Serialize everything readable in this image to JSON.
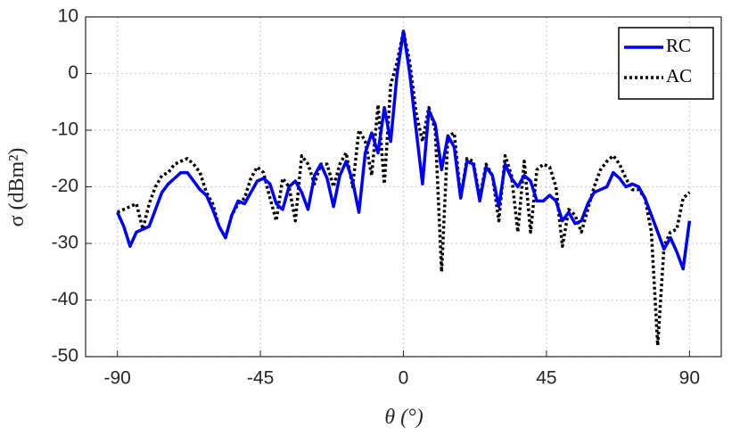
{
  "chart_data": {
    "type": "line",
    "xlabel": "θ (°)",
    "ylabel": "σ (dBm²)",
    "x": [
      -90,
      -88,
      -86,
      -84,
      -82,
      -80,
      -78,
      -76,
      -74,
      -72,
      -70,
      -68,
      -66,
      -64,
      -62,
      -60,
      -58,
      -56,
      -54,
      -52,
      -50,
      -48,
      -46,
      -44,
      -42,
      -40,
      -38,
      -36,
      -34,
      -32,
      -30,
      -28,
      -26,
      -24,
      -22,
      -20,
      -18,
      -16,
      -14,
      -12,
      -10,
      -8,
      -6,
      -4,
      -2,
      0,
      2,
      4,
      6,
      8,
      10,
      12,
      14,
      16,
      18,
      20,
      22,
      24,
      26,
      28,
      30,
      32,
      34,
      36,
      38,
      40,
      42,
      44,
      46,
      48,
      50,
      52,
      54,
      56,
      58,
      60,
      62,
      64,
      66,
      68,
      70,
      72,
      74,
      76,
      78,
      80,
      82,
      84,
      86,
      88,
      90
    ],
    "series": [
      {
        "name": "RC",
        "color": "#0000ff",
        "dash": "solid",
        "values": [
          -24.5,
          -27,
          -30.5,
          -28,
          -27.5,
          -27,
          -24,
          -21,
          -19.5,
          -18.5,
          -17.5,
          -17.5,
          -19,
          -20.5,
          -21.5,
          -24,
          -27,
          -29,
          -25,
          -22.5,
          -23,
          -21,
          -19,
          -18.5,
          -19.5,
          -23,
          -24,
          -20,
          -19,
          -21,
          -24,
          -18,
          -16,
          -18.5,
          -23.5,
          -18,
          -15.5,
          -19,
          -24.5,
          -14,
          -10.5,
          -14,
          -6,
          -12,
          0,
          7.5,
          0,
          -10,
          -19.5,
          -6.5,
          -9,
          -17,
          -11,
          -13,
          -22,
          -15.5,
          -16,
          -22.5,
          -16.5,
          -18,
          -23.5,
          -16,
          -18.5,
          -20,
          -18,
          -19,
          -22.5,
          -22.5,
          -21.5,
          -22.5,
          -26,
          -24.5,
          -26.5,
          -26,
          -23,
          -21,
          -20.5,
          -20,
          -17.5,
          -18.5,
          -20,
          -19.5,
          -20,
          -22,
          -25,
          -28,
          -31,
          -29,
          -31.5,
          -34.5,
          -26
        ]
      },
      {
        "name": "AC",
        "color": "#000000",
        "dash": "dotted",
        "values": [
          -24.5,
          -24,
          -23.5,
          -23,
          -27.5,
          -23,
          -20,
          -18,
          -17.5,
          -16,
          -15.5,
          -15,
          -16,
          -17.5,
          -21,
          -23,
          -27,
          -29,
          -25,
          -23,
          -22,
          -18.5,
          -16.5,
          -17.5,
          -22,
          -26,
          -18.5,
          -20,
          -26,
          -14.5,
          -16,
          -19.5,
          -16,
          -16,
          -20,
          -16,
          -14,
          -20,
          -10,
          -12,
          -18,
          -5.5,
          -19.5,
          -2,
          2,
          7.5,
          2,
          -7,
          -12,
          -6,
          -10,
          -35,
          -11,
          -10.5,
          -22,
          -15,
          -15.5,
          -22,
          -16,
          -18,
          -26,
          -14.5,
          -18,
          -28,
          -15.5,
          -28,
          -17,
          -16,
          -16.5,
          -20,
          -30.5,
          -24,
          -25,
          -28,
          -24,
          -20,
          -17,
          -15.5,
          -14.5,
          -16,
          -18.5,
          -20.5,
          -20.5,
          -22,
          -28,
          -48,
          -30.5,
          -28,
          -27.5,
          -22,
          -21
        ]
      }
    ],
    "xlim": [
      -100,
      100
    ],
    "ylim": [
      -50,
      10
    ],
    "xticks": [
      -90,
      -45,
      0,
      45,
      90
    ],
    "yticks": [
      -50,
      -40,
      -30,
      -20,
      -10,
      0,
      10
    ],
    "grid": true,
    "legend": "upper right"
  }
}
